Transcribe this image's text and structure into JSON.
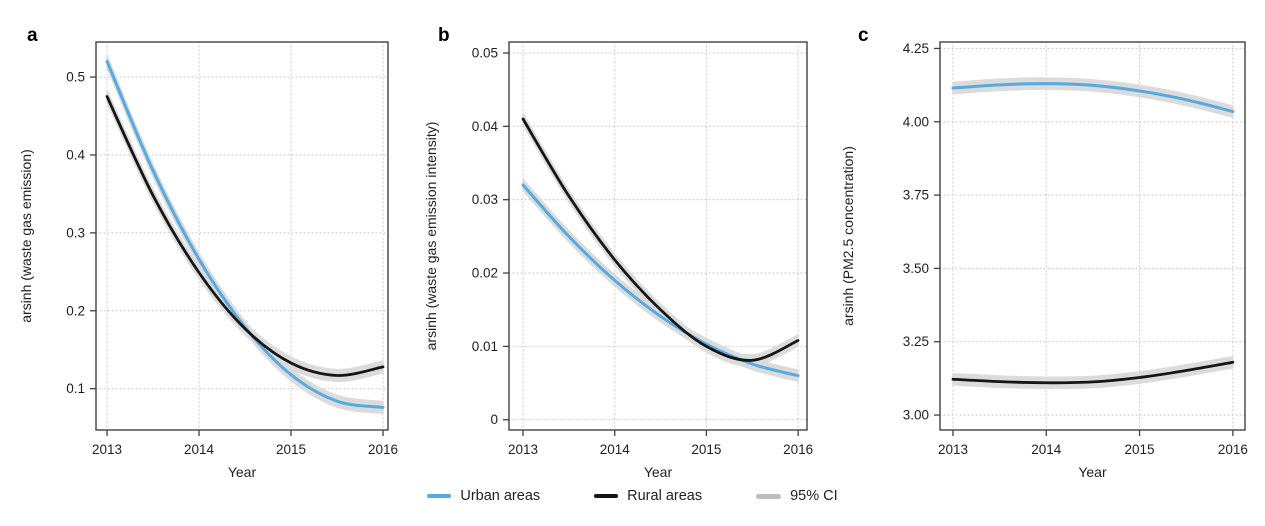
{
  "figure": {
    "colors": {
      "urban": "#57AADF",
      "rural": "#151515",
      "ci_band": "#DBDBDB",
      "ci_legend": "#BDBDBD",
      "grid": "#C9C9C9",
      "frame": "#424242",
      "text": "#1F1F1F"
    },
    "legend": {
      "items": [
        {
          "label": "Urban areas",
          "swatch": "line",
          "color_key": "urban"
        },
        {
          "label": "Rural areas",
          "swatch": "line",
          "color_key": "rural"
        },
        {
          "label": "95% CI",
          "swatch": "band",
          "color_key": "ci_legend"
        }
      ]
    }
  },
  "chart_data": [
    {
      "panel_label": "a",
      "type": "line",
      "xlabel": "Year",
      "ylabel": "arsinh (waste gas emission)",
      "grid": "dotted",
      "legend_position": "bottom-center-shared",
      "x_ticks": [
        2013,
        2014,
        2015,
        2016
      ],
      "x_tick_labels": [
        "2013",
        "2014",
        "2015",
        "2016"
      ],
      "y_ticks": [
        0.1,
        0.2,
        0.3,
        0.4,
        0.5
      ],
      "y_tick_labels": [
        "0.1",
        "0.2",
        "0.3",
        "0.4",
        "0.5"
      ],
      "xlim": [
        2012.88,
        2016.054
      ],
      "ylim": [
        0.047,
        0.545
      ],
      "x": [
        2013,
        2013.5,
        2014,
        2014.5,
        2015,
        2015.5,
        2016
      ],
      "series": [
        {
          "name": "Urban areas",
          "key": "urban",
          "ci_halfwidth": 0.0075,
          "values": [
            0.52,
            0.38,
            0.266,
            0.179,
            0.118,
            0.084,
            0.076
          ]
        },
        {
          "name": "Rural areas",
          "key": "rural",
          "ci_halfwidth": 0.0075,
          "values": [
            0.475,
            0.348,
            0.249,
            0.177,
            0.133,
            0.117,
            0.128
          ]
        }
      ]
    },
    {
      "panel_label": "b",
      "type": "line",
      "xlabel": "Year",
      "ylabel": "arsinh (waste gas emission intensity)",
      "grid": "dotted",
      "legend_position": "bottom-center-shared",
      "x_ticks": [
        2013,
        2014,
        2015,
        2016
      ],
      "x_tick_labels": [
        "2013",
        "2014",
        "2015",
        "2016"
      ],
      "y_ticks": [
        0,
        0.01,
        0.02,
        0.03,
        0.04,
        0.05
      ],
      "y_tick_labels": [
        "0",
        "0.01",
        "0.02",
        "0.03",
        "0.04",
        "0.05"
      ],
      "xlim": [
        2012.847,
        2016.097
      ],
      "ylim": [
        -0.0014,
        0.0515
      ],
      "x": [
        2013,
        2013.5,
        2014,
        2014.5,
        2015,
        2015.5,
        2016
      ],
      "series": [
        {
          "name": "Urban areas",
          "key": "urban",
          "ci_halfwidth": 0.00075,
          "values": [
            0.032,
            0.025,
            0.019,
            0.0141,
            0.0103,
            0.0076,
            0.006
          ]
        },
        {
          "name": "Rural areas",
          "key": "rural",
          "ci_halfwidth": 0.00075,
          "values": [
            0.041,
            0.0305,
            0.0218,
            0.015,
            0.01,
            0.0081,
            0.0108
          ]
        }
      ]
    },
    {
      "panel_label": "c",
      "type": "line",
      "xlabel": "Year",
      "ylabel": "arsinh (PM2.5 concentration)",
      "grid": "dotted",
      "legend_position": "bottom-center-shared",
      "x_ticks": [
        2013,
        2014,
        2015,
        2016
      ],
      "x_tick_labels": [
        "2013",
        "2014",
        "2015",
        "2016"
      ],
      "y_ticks": [
        3.0,
        3.25,
        3.5,
        3.75,
        4.0,
        4.25
      ],
      "y_tick_labels": [
        "3.00",
        "3.25",
        "3.50",
        "3.75",
        "4.00",
        "4.25"
      ],
      "xlim": [
        2012.861,
        2016.13
      ],
      "ylim": [
        2.949,
        4.272
      ],
      "x": [
        2013,
        2013.5,
        2014,
        2014.5,
        2015,
        2015.5,
        2016
      ],
      "series": [
        {
          "name": "Urban areas",
          "key": "urban",
          "ci_halfwidth": 0.019,
          "values": [
            4.115,
            4.126,
            4.13,
            4.124,
            4.105,
            4.075,
            4.035
          ]
        },
        {
          "name": "Rural areas",
          "key": "rural",
          "ci_halfwidth": 0.019,
          "values": [
            3.122,
            3.114,
            3.11,
            3.113,
            3.128,
            3.152,
            3.18
          ]
        }
      ]
    }
  ]
}
